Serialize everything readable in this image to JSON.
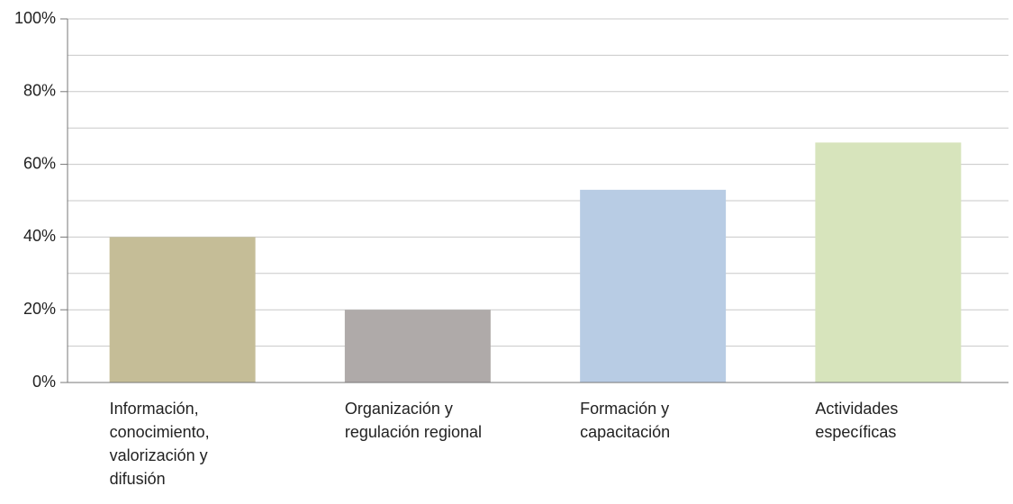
{
  "chart_data": {
    "type": "bar",
    "categories": [
      "Información, conocimiento, valorización y difusión",
      "Organización y regulación regional",
      "Formación y capacitación",
      "Actividades específicas"
    ],
    "values": [
      40,
      20,
      53,
      66
    ],
    "colors": [
      "#c5bd97",
      "#afaaa9",
      "#b8cce4",
      "#d7e4bc"
    ],
    "ylim": [
      0,
      100
    ],
    "yticks": [
      {
        "value": 0,
        "label": "0%"
      },
      {
        "value": 20,
        "label": "20%"
      },
      {
        "value": 40,
        "label": "40%"
      },
      {
        "value": 60,
        "label": "60%"
      },
      {
        "value": 80,
        "label": "80%"
      },
      {
        "value": 100,
        "label": "100%"
      }
    ],
    "minor_yticks": [
      10,
      30,
      50,
      70,
      90
    ],
    "grid": true
  }
}
